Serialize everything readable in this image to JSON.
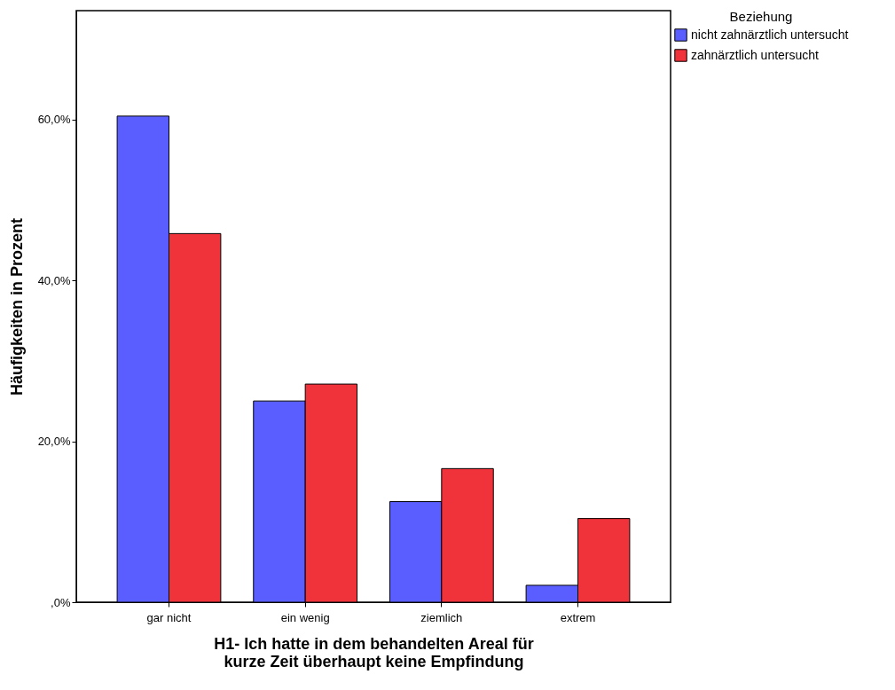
{
  "chart_data": {
    "type": "bar",
    "xlabel": "H1- Ich hatte in dem behandelten Areal für kurze Zeit überhaupt keine Empfindung",
    "ylabel": "Häufigkeiten in Prozent",
    "legend_title": "Beziehung",
    "legend": "top right",
    "grid": false,
    "categories": [
      "gar nicht",
      "ein wenig",
      "ziemlich",
      "extrem"
    ],
    "series": [
      {
        "name": "nicht zahnärztlich untersucht",
        "color": "#5b5eff",
        "values": [
          60.4,
          25.0,
          12.5,
          2.1
        ]
      },
      {
        "name": "zahnärztlich untersucht",
        "color": "#f0323a",
        "values": [
          45.8,
          27.1,
          16.6,
          10.4
        ]
      }
    ],
    "ylim": [
      0,
      73.5
    ],
    "yticks": [
      {
        "value": 0,
        "label": ",0%"
      },
      {
        "value": 20,
        "label": "20,0%"
      },
      {
        "value": 40,
        "label": "40,0%"
      },
      {
        "value": 60,
        "label": "60,0%"
      }
    ]
  }
}
